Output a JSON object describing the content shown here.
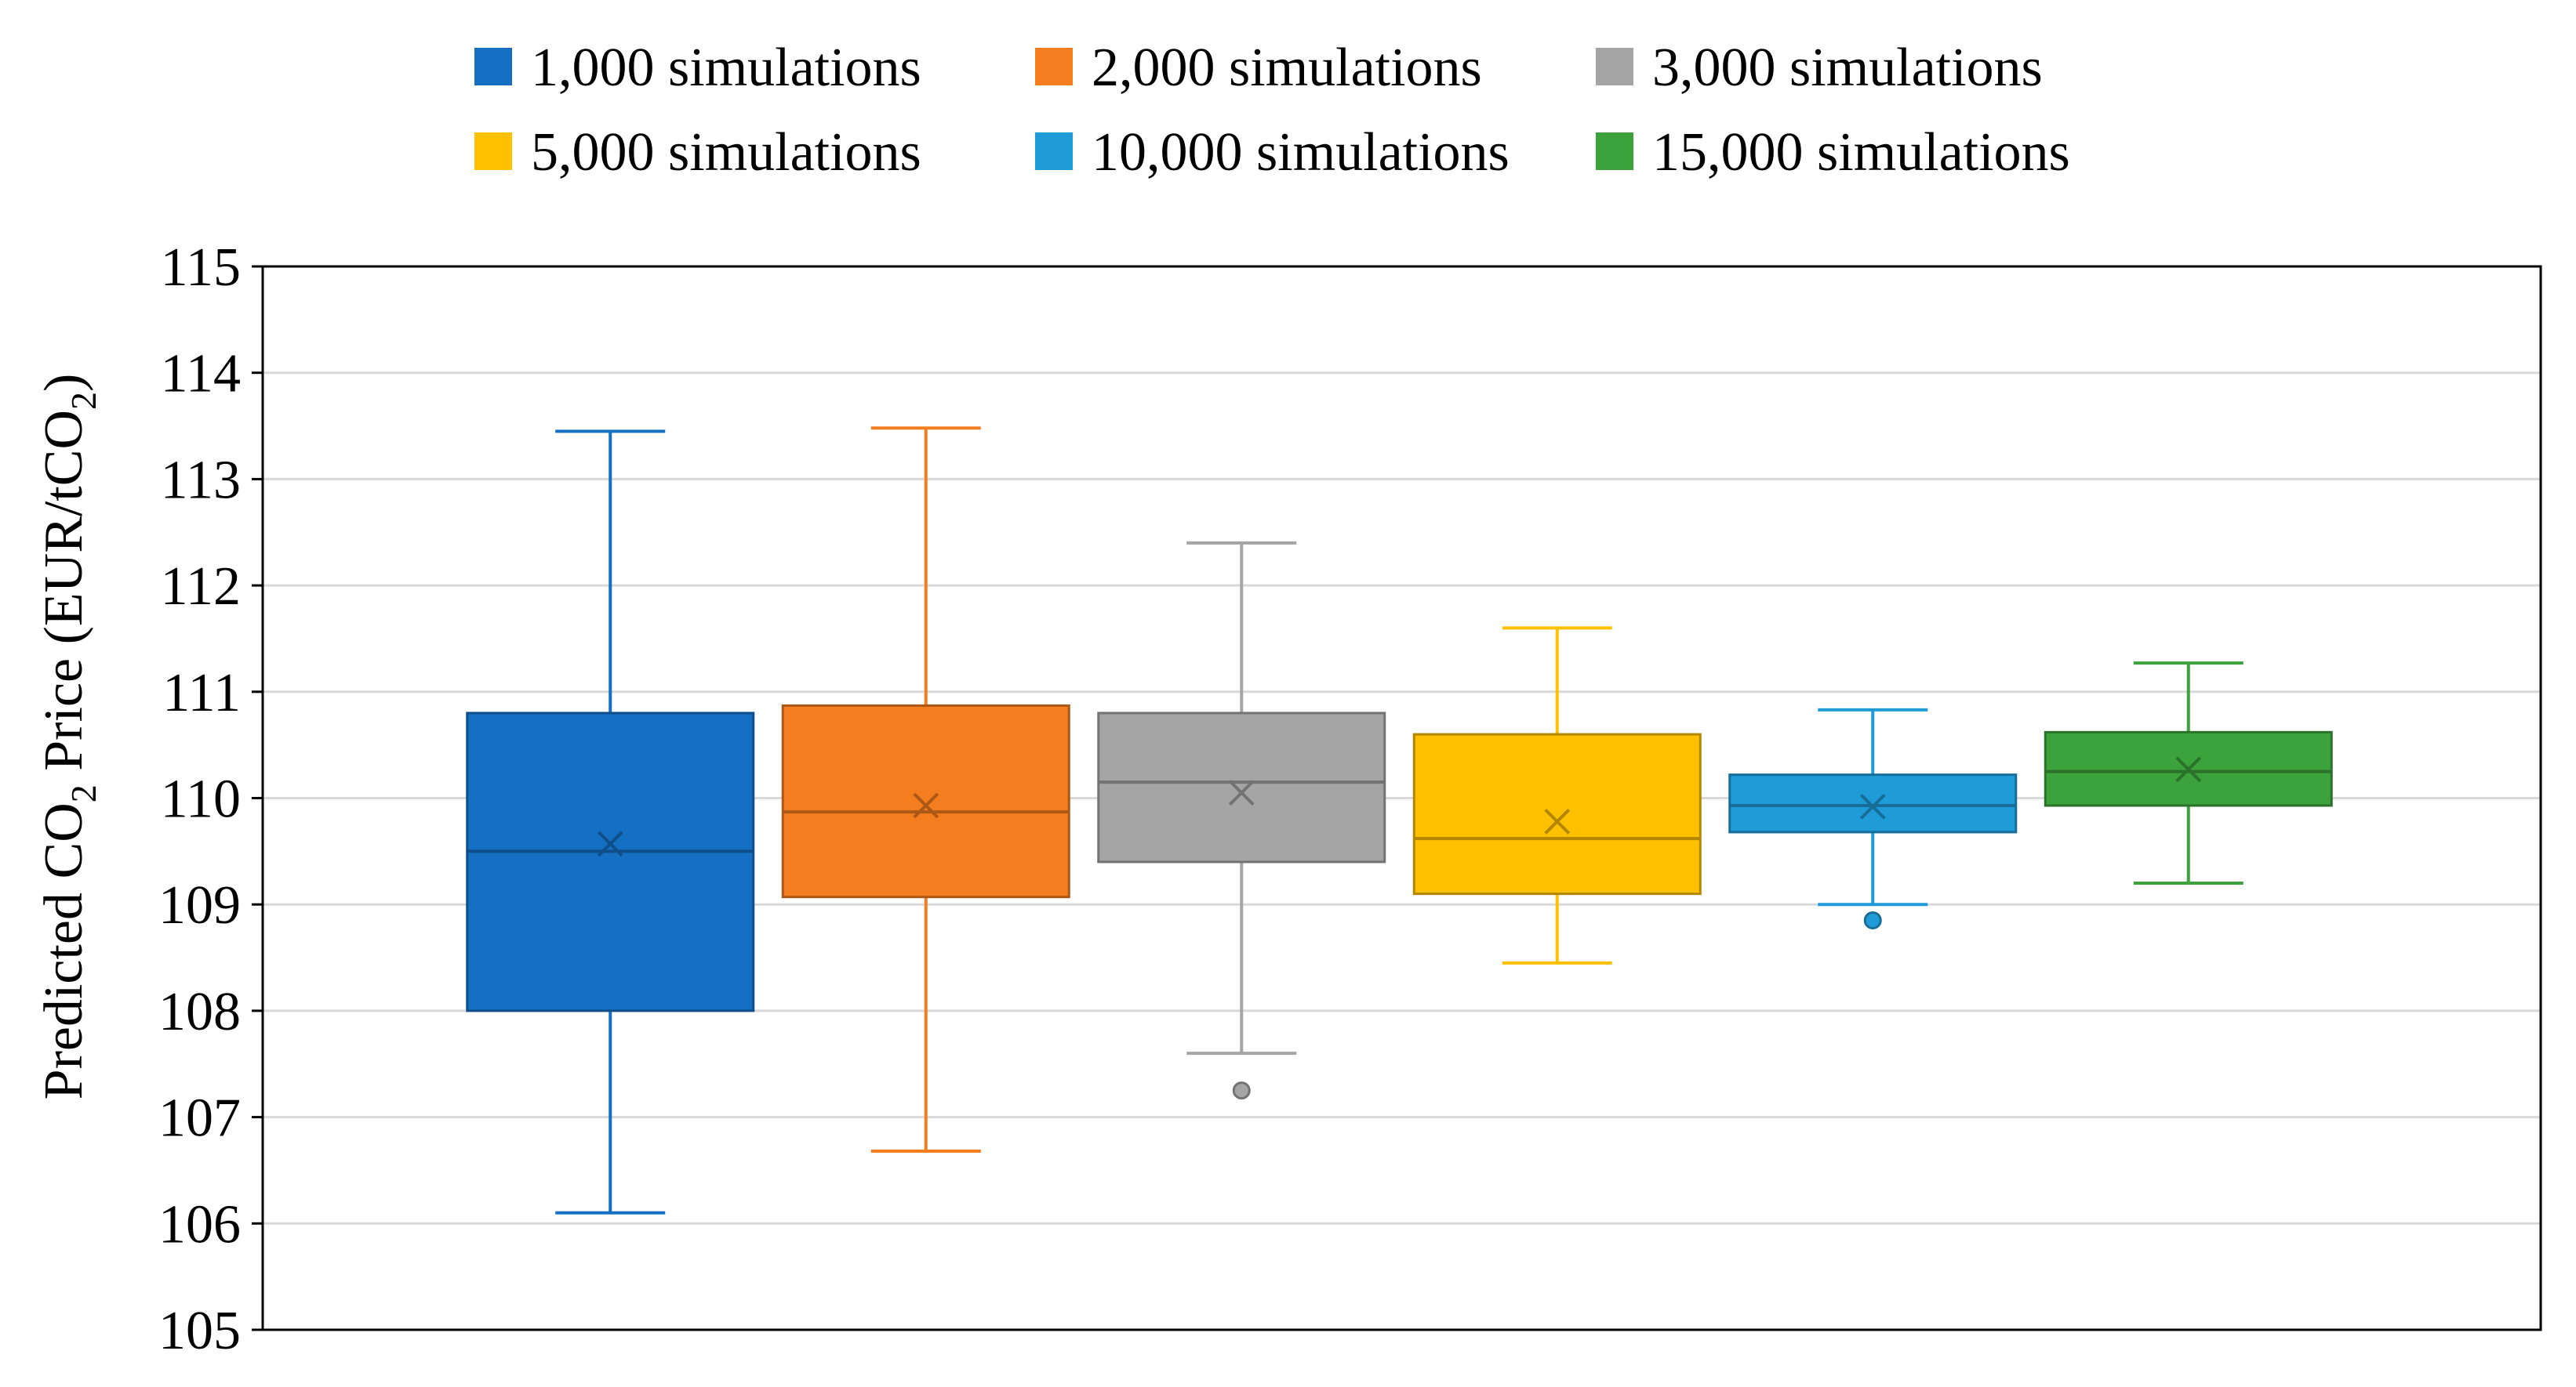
{
  "chart_data": {
    "type": "box",
    "title": "",
    "xlabel": "",
    "ylabel": {
      "prefix": "Predicted CO",
      "sub1": "2",
      "middle": " Price (EUR/tCO",
      "sub2": "2",
      "suffix": ")"
    },
    "ylim": [
      105,
      115
    ],
    "yticks": [
      105,
      106,
      107,
      108,
      109,
      110,
      111,
      112,
      113,
      114,
      115
    ],
    "grid": true,
    "legend_position": "top",
    "series": [
      {
        "name": "1,000 simulations",
        "color": "#1570C4",
        "min": 106.1,
        "q1": 108.0,
        "median": 109.5,
        "q3": 110.8,
        "max": 113.45,
        "mean": 109.57,
        "outliers": []
      },
      {
        "name": "2,000 simulations",
        "color": "#F47D20",
        "min": 106.68,
        "q1": 109.07,
        "median": 109.87,
        "q3": 110.87,
        "max": 113.48,
        "mean": 109.93,
        "outliers": []
      },
      {
        "name": "3,000 simulations",
        "color": "#A5A5A5",
        "min": 107.6,
        "q1": 109.4,
        "median": 110.15,
        "q3": 110.8,
        "max": 112.4,
        "mean": 110.05,
        "outliers": [
          107.25
        ]
      },
      {
        "name": "5,000 simulations",
        "color": "#FFC000",
        "min": 108.45,
        "q1": 109.1,
        "median": 109.62,
        "q3": 110.6,
        "max": 111.6,
        "mean": 109.78,
        "outliers": []
      },
      {
        "name": "10,000 simulations",
        "color": "#1F9BD7",
        "min": 109.0,
        "q1": 109.68,
        "median": 109.93,
        "q3": 110.22,
        "max": 110.83,
        "mean": 109.92,
        "outliers": [
          108.85
        ]
      },
      {
        "name": "15,000 simulations",
        "color": "#3CA33C",
        "min": 109.2,
        "q1": 109.93,
        "median": 110.25,
        "q3": 110.62,
        "max": 111.27,
        "mean": 110.27,
        "outliers": []
      }
    ]
  }
}
